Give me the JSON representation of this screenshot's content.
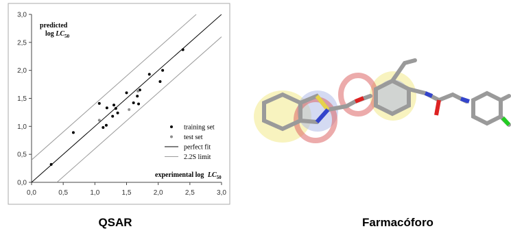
{
  "chart_data": {
    "type": "scatter",
    "y_label": {
      "line1": "predicted",
      "prefix": "log ",
      "var": "LC",
      "sub": "50"
    },
    "x_label": {
      "prefix": "experimental log ",
      "var": "LC",
      "sub": "50"
    },
    "xlim": [
      0,
      3
    ],
    "ylim": [
      0,
      3
    ],
    "xticks": [
      {
        "value": 0,
        "label": "0,0"
      },
      {
        "value": 0.5,
        "label": "0,5"
      },
      {
        "value": 1,
        "label": "1,0"
      },
      {
        "value": 1.5,
        "label": "1,5"
      },
      {
        "value": 2,
        "label": "2,0"
      },
      {
        "value": 2.5,
        "label": "2,5"
      },
      {
        "value": 3,
        "label": "3,0"
      }
    ],
    "yticks": [
      {
        "value": 0,
        "label": "0,0"
      },
      {
        "value": 0.5,
        "label": "0,5"
      },
      {
        "value": 1,
        "label": "1,0"
      },
      {
        "value": 1.5,
        "label": "1,5"
      },
      {
        "value": 2,
        "label": "2,0"
      },
      {
        "value": 2.5,
        "label": "2,5"
      },
      {
        "value": 3,
        "label": "3,0"
      }
    ],
    "series": [
      {
        "name": "training set",
        "type": "scatter",
        "color": "#000000",
        "x": [
          0.31,
          0.66,
          1.07,
          1.19,
          1.13,
          1.18,
          1.28,
          1.3,
          1.33,
          1.36,
          1.5,
          1.61,
          1.67,
          1.69,
          1.71,
          1.86,
          2.03,
          2.07,
          2.39
        ],
        "values": [
          0.32,
          0.89,
          1.41,
          1.33,
          0.98,
          1.02,
          1.18,
          1.38,
          1.32,
          1.24,
          1.6,
          1.42,
          1.54,
          1.4,
          1.65,
          1.93,
          1.8,
          2.0,
          2.37
        ]
      },
      {
        "name": "test set",
        "type": "scatter",
        "color": "#8c8c8c",
        "x": [
          1.07,
          1.54,
          1.68
        ],
        "values": [
          1.11,
          1.3,
          1.63
        ]
      },
      {
        "name": "perfect fit",
        "type": "line",
        "color": "#000000",
        "x": [
          0,
          3
        ],
        "values": [
          0,
          3
        ]
      },
      {
        "name": "2.2S limit",
        "type": "line",
        "color": "#9a9a9a",
        "x": [
          0,
          2.6,
          null,
          0.4,
          3
        ],
        "values": [
          0.4,
          3,
          null,
          0,
          2.6
        ]
      }
    ]
  },
  "figure_labels": {
    "left": "QSAR",
    "right": "Farmacóforo"
  }
}
